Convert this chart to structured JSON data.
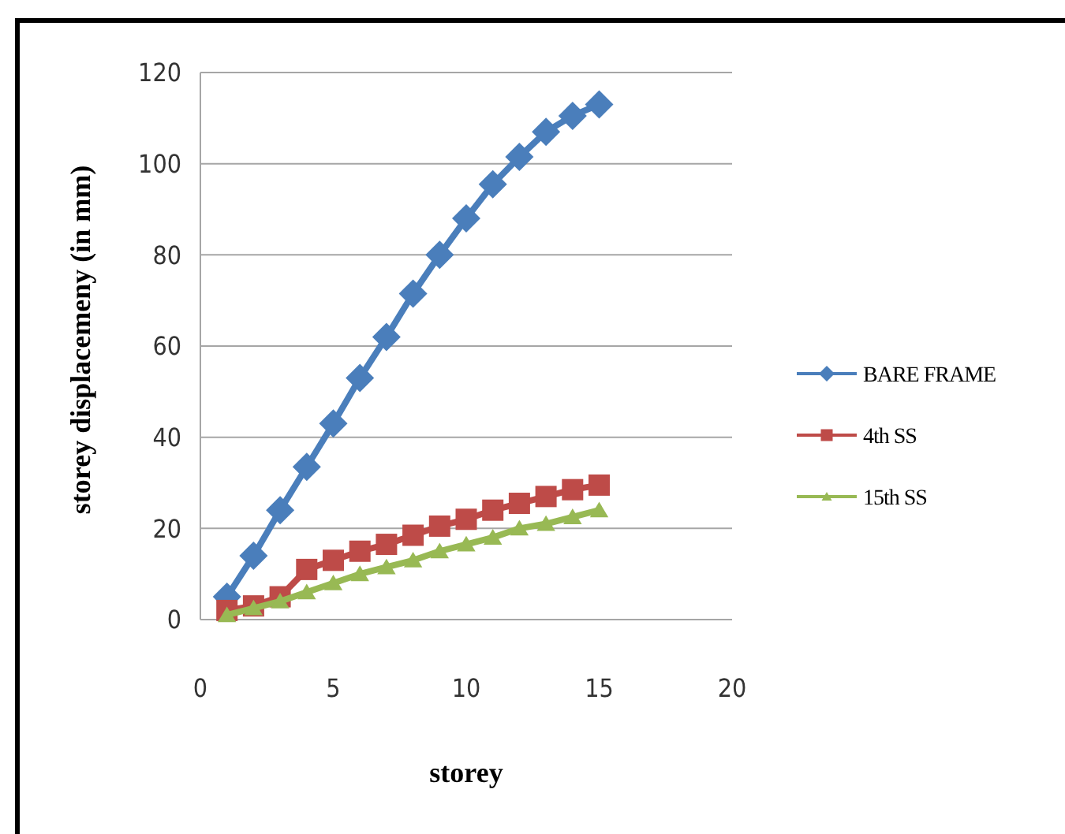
{
  "chart_data": {
    "type": "line",
    "xlabel": "storey",
    "ylabel": "storey displacemeny (in mm)",
    "x": [
      1,
      2,
      3,
      4,
      5,
      6,
      7,
      8,
      9,
      10,
      11,
      12,
      13,
      14,
      15
    ],
    "series": [
      {
        "name": "BARE FRAME",
        "color": "#4a7ebb",
        "marker": "diamond",
        "values": [
          5,
          14,
          24,
          33.5,
          43,
          53,
          62,
          71.5,
          80,
          88,
          95.5,
          101.5,
          107,
          110.5,
          113
        ]
      },
      {
        "name": "4th SS",
        "color": "#be4b48",
        "marker": "square",
        "values": [
          2,
          3,
          5,
          11,
          13,
          15,
          16.5,
          18.5,
          20.5,
          22,
          24,
          25.5,
          27,
          28.5,
          29.5
        ]
      },
      {
        "name": "15th SS",
        "color": "#98b954",
        "marker": "triangle",
        "values": [
          1,
          2.5,
          4,
          6,
          8,
          10,
          11.5,
          13,
          15,
          16.5,
          18,
          20,
          21,
          22.5,
          24
        ]
      }
    ],
    "xlim": [
      0,
      20
    ],
    "xticks": [
      0,
      5,
      10,
      15,
      20
    ],
    "ylim": [
      0,
      120
    ],
    "yticks": [
      0,
      20,
      40,
      60,
      80,
      100,
      120
    ],
    "grid": "y",
    "legend": "right"
  }
}
